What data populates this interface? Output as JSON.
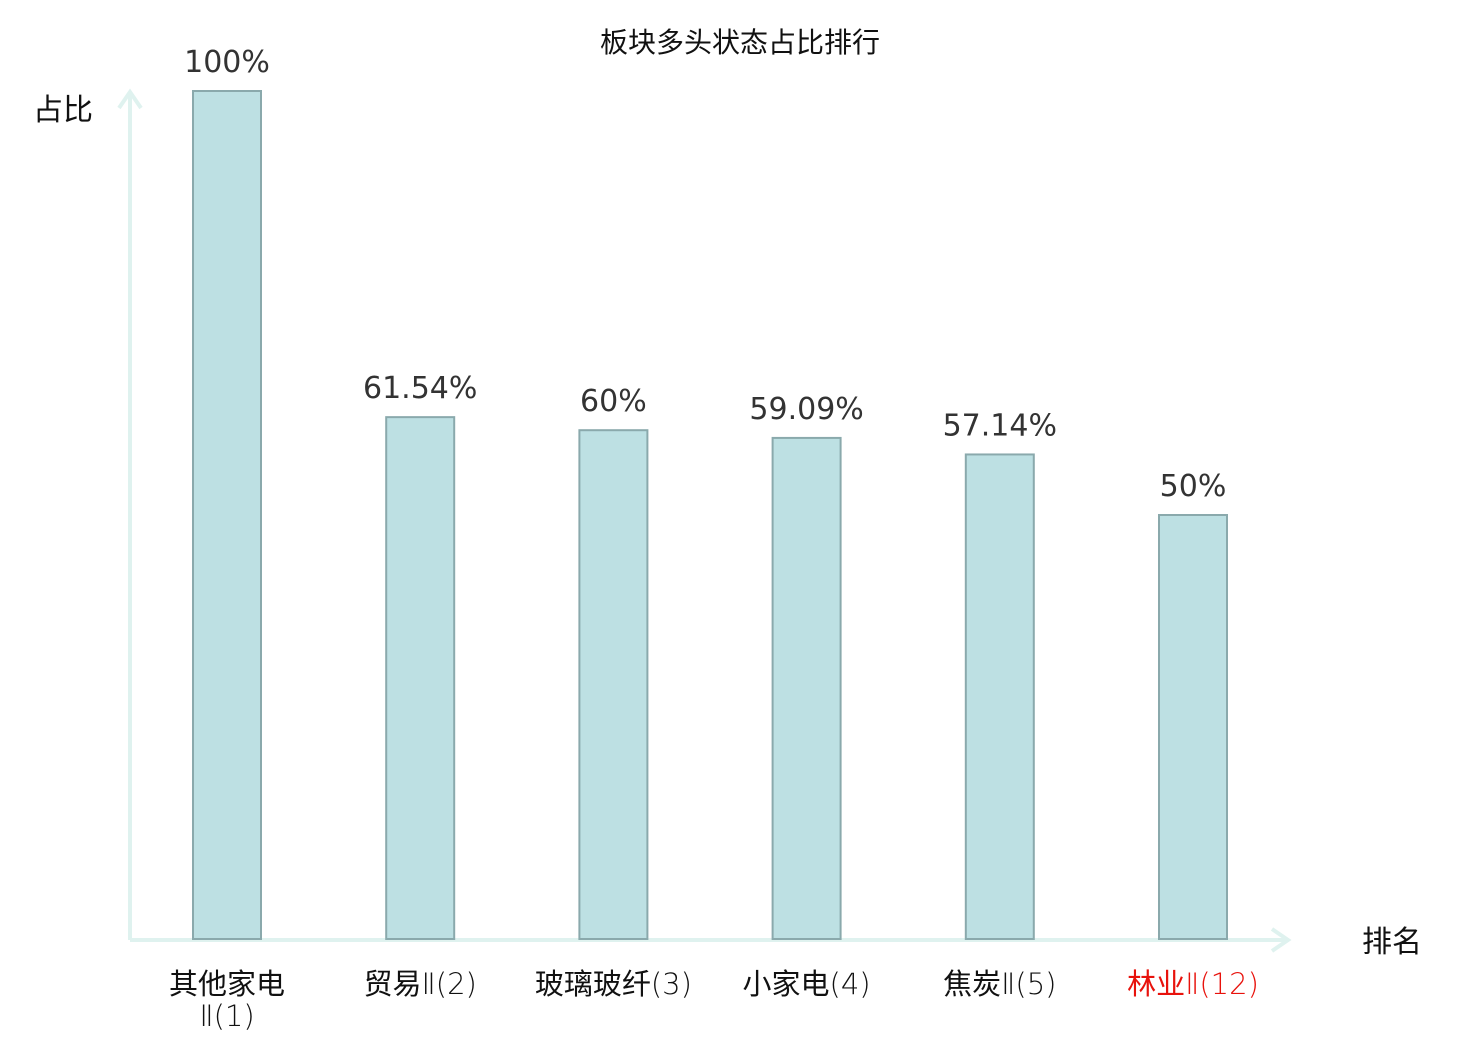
{
  "chart_data": {
    "type": "bar",
    "title": "板块多头状态占比排行",
    "ylabel": "占比",
    "xlabel": "排名",
    "ylim": [
      0,
      100
    ],
    "grid": false,
    "categories": [
      {
        "name": "其他家电",
        "suffix": "Ⅱ(1)",
        "highlight": false
      },
      {
        "name": "贸易",
        "suffix": "Ⅱ(2)",
        "highlight": false
      },
      {
        "name": "玻璃玻纤",
        "suffix": "(3)",
        "highlight": false
      },
      {
        "name": "小家电",
        "suffix": "(4)",
        "highlight": false
      },
      {
        "name": "焦炭",
        "suffix": "Ⅱ(5)",
        "highlight": false
      },
      {
        "name": "林业",
        "suffix": "Ⅱ(12)",
        "highlight": true
      }
    ],
    "values": [
      100,
      61.54,
      60,
      59.09,
      57.14,
      50
    ],
    "value_labels": [
      "100%",
      "61.54%",
      "60%",
      "59.09%",
      "57.14%",
      "50%"
    ],
    "colors": {
      "bar_fill": "#bde0e3",
      "bar_stroke": "#8aa9ac",
      "axis": "#dff2ef",
      "text": "#111111",
      "value_text": "#333333",
      "highlight": "#e8120c"
    }
  }
}
